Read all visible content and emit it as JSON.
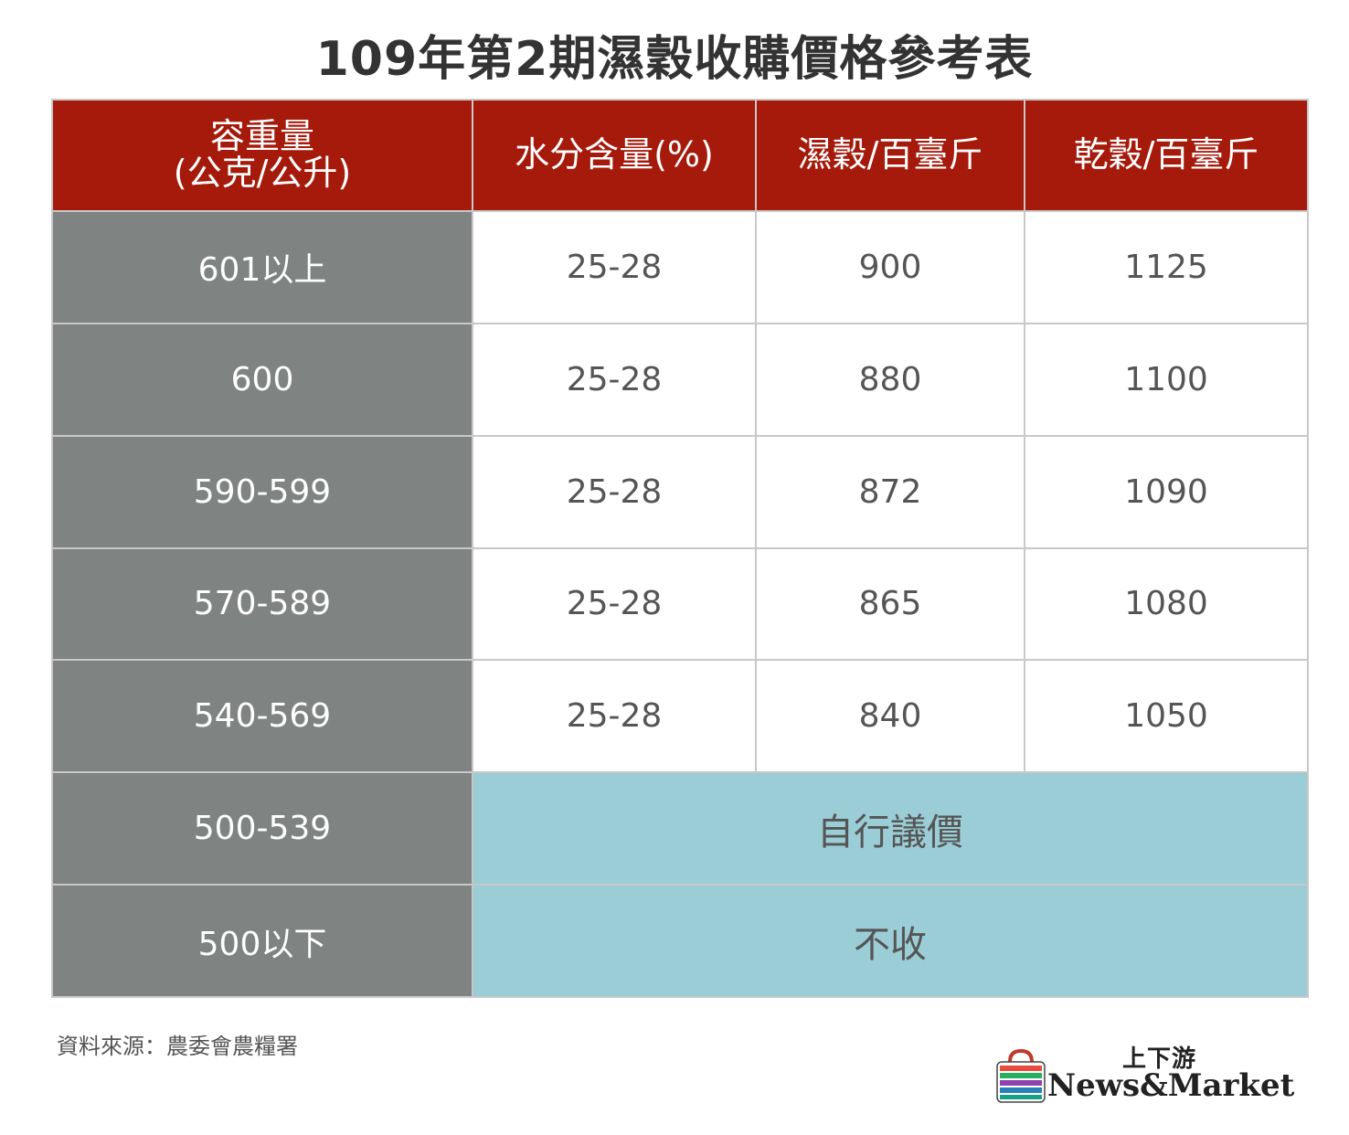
{
  "title": "109年第2期濕穀收購價格參考表",
  "table": {
    "headers": {
      "weight_line1": "容重量",
      "weight_line2": "(公克/公升)",
      "moisture": "水分含量(%)",
      "wet_price": "濕穀/百臺斤",
      "dry_price": "乾穀/百臺斤"
    },
    "rows": [
      {
        "weight": "601以上",
        "moisture": "25-28",
        "wet": "900",
        "dry": "1125"
      },
      {
        "weight": "600",
        "moisture": "25-28",
        "wet": "880",
        "dry": "1100"
      },
      {
        "weight": "590-599",
        "moisture": "25-28",
        "wet": "872",
        "dry": "1090"
      },
      {
        "weight": "570-589",
        "moisture": "25-28",
        "wet": "865",
        "dry": "1080"
      },
      {
        "weight": "540-569",
        "moisture": "25-28",
        "wet": "840",
        "dry": "1050"
      }
    ],
    "merged_rows": [
      {
        "weight": "500-539",
        "note": "自行議價"
      },
      {
        "weight": "500以下",
        "note": "不收"
      }
    ]
  },
  "source": "資料來源：農委會農糧署",
  "logo": {
    "chinese": "上下游",
    "english": "News&Market"
  },
  "colors": {
    "header_bg": "#a51a0b",
    "weight_col_bg": "#7f8381",
    "merged_bg": "#9bcdd6",
    "border": "#c8c8c8"
  }
}
